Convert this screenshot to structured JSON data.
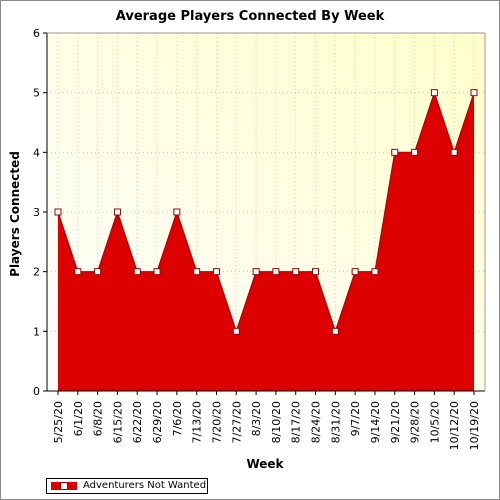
{
  "chart_data": {
    "type": "area",
    "title": "Average Players Connected By Week",
    "xlabel": "Week",
    "ylabel": "Players Connected",
    "ylim": [
      0,
      6
    ],
    "yticks": [
      0,
      1,
      2,
      3,
      4,
      5,
      6
    ],
    "grid": true,
    "legend_position": "bottom-left",
    "categories": [
      "5/25/20",
      "6/1/20",
      "6/8/20",
      "6/15/20",
      "6/22/20",
      "6/29/20",
      "7/6/20",
      "7/13/20",
      "7/20/20",
      "7/27/20",
      "8/3/20",
      "8/10/20",
      "8/17/20",
      "8/24/20",
      "8/31/20",
      "9/7/20",
      "9/14/20",
      "9/21/20",
      "9/28/20",
      "10/5/20",
      "10/12/20",
      "10/19/20"
    ],
    "series": [
      {
        "name": "Adventurers Not Wanted",
        "values": [
          3,
          2,
          2,
          3,
          2,
          2,
          3,
          2,
          2,
          1,
          2,
          2,
          2,
          2,
          1,
          2,
          2,
          4,
          4,
          5,
          4,
          5
        ],
        "color": "#dd0000"
      }
    ],
    "plot_background": "#ffffcc"
  }
}
